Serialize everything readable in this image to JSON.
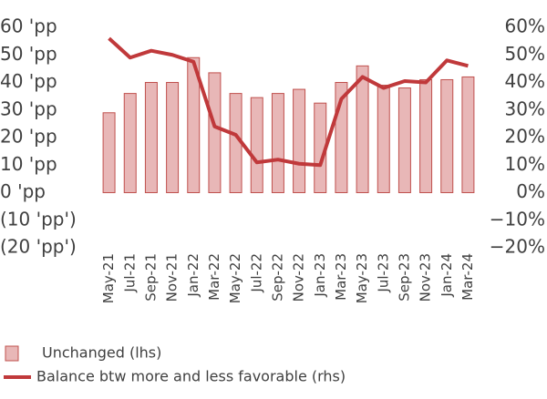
{
  "chart_data": {
    "type": "bar-line",
    "categories": [
      "May-21",
      "Jul-21",
      "Sep-21",
      "Nov-21",
      "Jan-22",
      "Mar-22",
      "May-22",
      "Jul-22",
      "Sep-22",
      "Nov-22",
      "Jan-23",
      "Mar-23",
      "May-23",
      "Jul-23",
      "Sep-23",
      "Nov-23",
      "Jan-24",
      "Mar-24"
    ],
    "series": [
      {
        "name": "Unchanged (lhs)",
        "type": "bar",
        "color": "#e8b7b7",
        "edge": "#c0504d",
        "axis": "y",
        "values": [
          29,
          36,
          40,
          40,
          49,
          43.5,
          36,
          34.5,
          36,
          37.5,
          32.5,
          40,
          46,
          39,
          38,
          41,
          41,
          42
        ]
      },
      {
        "name": "Balance btw more and less favorable (rhs)",
        "type": "line",
        "color": "#c0393b",
        "axis": "y2",
        "values": [
          56,
          49,
          51.5,
          50,
          47.5,
          24,
          21,
          11,
          12,
          10.5,
          10,
          34,
          42,
          38,
          40.5,
          40,
          48,
          46
        ]
      }
    ],
    "ylim": [
      -20,
      60
    ],
    "yticks": [
      {
        "value": -20,
        "label": "(20 'pp')"
      },
      {
        "value": -10,
        "label": "(10 'pp')"
      },
      {
        "value": 0,
        "label": "0 'pp"
      },
      {
        "value": 10,
        "label": "10 'pp"
      },
      {
        "value": 20,
        "label": "20 'pp"
      },
      {
        "value": 30,
        "label": "30 'pp"
      },
      {
        "value": 40,
        "label": "40 'pp"
      },
      {
        "value": 50,
        "label": "50 'pp"
      },
      {
        "value": 60,
        "label": "60 'pp"
      }
    ],
    "y2lim": [
      -20,
      60
    ],
    "y2ticks": [
      {
        "value": -20,
        "label": "−20%"
      },
      {
        "value": -10,
        "label": "−10%"
      },
      {
        "value": 0,
        "label": "0%"
      },
      {
        "value": 10,
        "label": "10%"
      },
      {
        "value": 20,
        "label": "20%"
      },
      {
        "value": 30,
        "label": "30%"
      },
      {
        "value": 40,
        "label": "40%"
      },
      {
        "value": 50,
        "label": "50%"
      },
      {
        "value": 60,
        "label": "60%"
      }
    ],
    "grid": false
  }
}
